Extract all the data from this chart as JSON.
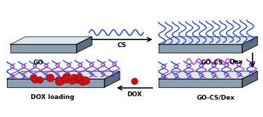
{
  "background_color": "#ffffff",
  "go_label": "GO",
  "go_cs_label": "GO-CS",
  "go_cs_dex_label": "GO-CS/Dex",
  "dox_loading_label": "DOX loading",
  "cs_label": "CS",
  "dex_label": "Dex",
  "dox_label": "DOX",
  "label_fontsize": 6.5,
  "arrow_label_fontsize": 6.5,
  "sheet_top_color": "#dce8ee",
  "sheet_side_color": "#5a7080",
  "sheet_bottom_color": "#8aa0b0",
  "cs_chain_color": "#2244cc",
  "dex_chain_color": "#aa33cc",
  "dox_color": "#cc1111",
  "wavy_cs_color": "#3355ee",
  "wavy_dex_color": "#cc44ee"
}
